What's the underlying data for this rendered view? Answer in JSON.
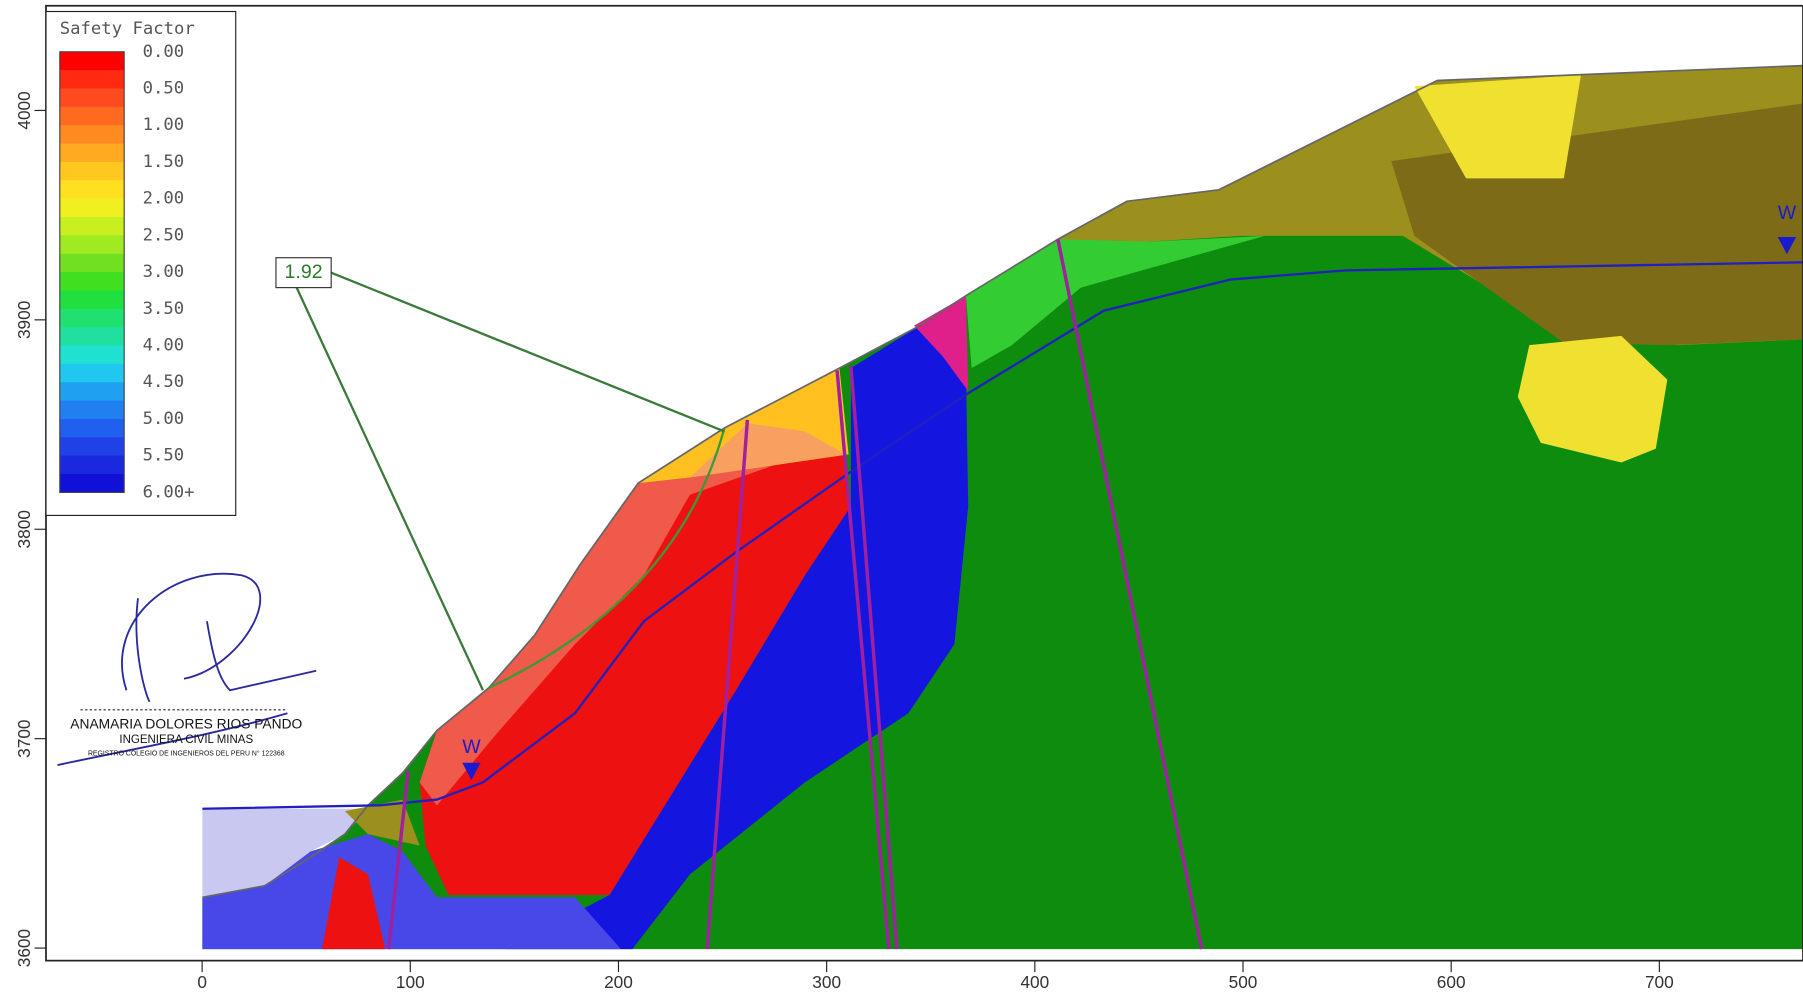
{
  "chart_data": {
    "type": "slope-stability",
    "legend": {
      "title": "Safety Factor",
      "ticks": [
        {
          "value": 0,
          "label": "0.00"
        },
        {
          "value": 0.5,
          "label": "0.50"
        },
        {
          "value": 1,
          "label": "1.00"
        },
        {
          "value": 1.5,
          "label": "1.50"
        },
        {
          "value": 2,
          "label": "2.00"
        },
        {
          "value": 2.5,
          "label": "2.50"
        },
        {
          "value": 3,
          "label": "3.00"
        },
        {
          "value": 3.5,
          "label": "3.50"
        },
        {
          "value": 4,
          "label": "4.00"
        },
        {
          "value": 4.5,
          "label": "4.50"
        },
        {
          "value": 5,
          "label": "5.00"
        },
        {
          "value": 5.5,
          "label": "5.50"
        },
        {
          "value": 6,
          "label": "6.00+"
        }
      ],
      "colors": [
        "#ff0000",
        "#ff2a10",
        "#ff4a20",
        "#ff6a20",
        "#ff8a20",
        "#ffaa20",
        "#ffc820",
        "#ffe020",
        "#f0f020",
        "#c8f020",
        "#a0ea20",
        "#70e020",
        "#40e020",
        "#20e040",
        "#20e070",
        "#20e0a0",
        "#20e0d0",
        "#20c8f0",
        "#20a0f0",
        "#2080f0",
        "#2060f0",
        "#2040e8",
        "#1a28e0",
        "#1010d8"
      ]
    },
    "xlim": [
      -75,
      769
    ],
    "ylim": [
      3594,
      4050
    ],
    "xticks": [
      0,
      100,
      200,
      300,
      400,
      500,
      600,
      700
    ],
    "yticks": [
      3600,
      3700,
      3800,
      3900,
      4000
    ],
    "critical_factor": 1.92,
    "water_marks": [
      "W",
      "W"
    ],
    "signature": {
      "name": "ANAMARIA DOLORES RIOS PANDO",
      "title": "INGENIERA CIVIL  MINAS",
      "registry": "REGISTRO COLEGIO DE INGENIEROS DEL PERU N° 122368"
    }
  }
}
